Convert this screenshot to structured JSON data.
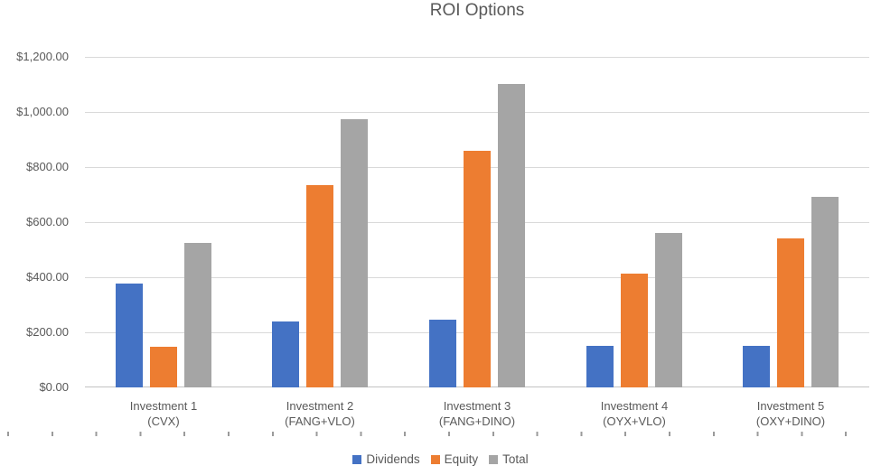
{
  "chart_data": {
    "type": "bar",
    "title": "ROI Options",
    "categories": [
      {
        "line1": "Investment 1",
        "line2": "(CVX)"
      },
      {
        "line1": "Investment 2",
        "line2": "(FANG+VLO)"
      },
      {
        "line1": "Investment 3",
        "line2": "(FANG+DINO)"
      },
      {
        "line1": "Investment 4",
        "line2": "(OYX+VLO)"
      },
      {
        "line1": "Investment 5",
        "line2": "(OXY+DINO)"
      }
    ],
    "series": [
      {
        "name": "Dividends",
        "color": "#4472C4",
        "values": [
          378,
          240,
          245,
          150,
          151
        ]
      },
      {
        "name": "Equity",
        "color": "#ED7D31",
        "values": [
          148,
          735,
          858,
          412,
          540
        ]
      },
      {
        "name": "Total",
        "color": "#A5A5A5",
        "values": [
          526,
          975,
          1103,
          562,
          691
        ]
      }
    ],
    "xlabel": "",
    "ylabel": "",
    "ylim": [
      0,
      1200
    ],
    "ytick_step": 200,
    "ytick_labels": [
      "$0.00",
      "$200.00",
      "$400.00",
      "$600.00",
      "$800.00",
      "$1,000.00",
      "$1,200.00"
    ],
    "grid": true,
    "legend_position": "bottom"
  },
  "colors": {
    "text": "#595959",
    "gridline": "#D9D9D9",
    "axis_line": "#C3C3C3",
    "worksheet_tick": "#9B9B9B"
  }
}
